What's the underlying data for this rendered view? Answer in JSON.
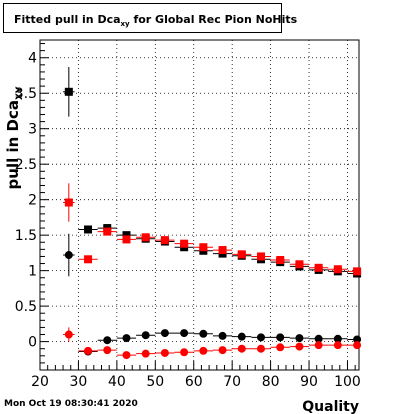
{
  "canvas": {
    "title": "Fitted pull in Dca",
    "title_sub": "xy",
    "title_suffix": " for Global Rec Pion NoHits",
    "footer_timestamp": "Mon Oct 19 08:30:41 2020"
  },
  "chart_data": {
    "type": "scatter",
    "title": "Fitted pull in Dca_xy for Global Rec Pion NoHits",
    "xlabel": "Quality",
    "ylabel": "pull in Dca",
    "ylabel_sub": "XY",
    "xlim": [
      20,
      103
    ],
    "ylim": [
      -0.4,
      4.25
    ],
    "x_ticks": [
      20,
      30,
      40,
      50,
      60,
      70,
      80,
      90,
      100
    ],
    "y_ticks": [
      0,
      0.5,
      1,
      1.5,
      2,
      2.5,
      3,
      3.5,
      4
    ],
    "grid": true,
    "colors": {
      "black": "#000000",
      "red": "#ff0000"
    },
    "series": [
      {
        "marker": "square",
        "color": "#000000",
        "points": [
          {
            "x": 27.5,
            "y": 3.52,
            "xerr": 1.5,
            "yerr": 0.35
          },
          {
            "x": 32.5,
            "y": 1.58,
            "xerr": 2.5,
            "yerr": 0.03
          },
          {
            "x": 37.5,
            "y": 1.6,
            "xerr": 2.5,
            "yerr": 0.02
          },
          {
            "x": 42.5,
            "y": 1.5,
            "xerr": 2.5,
            "yerr": 0.02
          },
          {
            "x": 47.5,
            "y": 1.45,
            "xerr": 2.5,
            "yerr": 0.02
          },
          {
            "x": 52.5,
            "y": 1.41,
            "xerr": 2.5,
            "yerr": 0.02
          },
          {
            "x": 57.5,
            "y": 1.33,
            "xerr": 2.5,
            "yerr": 0.02
          },
          {
            "x": 62.5,
            "y": 1.28,
            "xerr": 2.5,
            "yerr": 0.02
          },
          {
            "x": 67.5,
            "y": 1.24,
            "xerr": 2.5,
            "yerr": 0.02
          },
          {
            "x": 72.5,
            "y": 1.21,
            "xerr": 2.5,
            "yerr": 0.02
          },
          {
            "x": 77.5,
            "y": 1.16,
            "xerr": 2.5,
            "yerr": 0.02
          },
          {
            "x": 82.5,
            "y": 1.12,
            "xerr": 2.5,
            "yerr": 0.02
          },
          {
            "x": 87.5,
            "y": 1.06,
            "xerr": 2.5,
            "yerr": 0.02
          },
          {
            "x": 92.5,
            "y": 1.01,
            "xerr": 2.5,
            "yerr": 0.02
          },
          {
            "x": 97.5,
            "y": 0.99,
            "xerr": 2.5,
            "yerr": 0.02
          },
          {
            "x": 102.5,
            "y": 0.96,
            "xerr": 2.5,
            "yerr": 0.02
          }
        ]
      },
      {
        "marker": "square",
        "color": "#ff0000",
        "points": [
          {
            "x": 27.5,
            "y": 1.96,
            "xerr": 1.5,
            "yerr": 0.27
          },
          {
            "x": 32.5,
            "y": 1.16,
            "xerr": 2.5,
            "yerr": 0.04
          },
          {
            "x": 37.5,
            "y": 1.55,
            "xerr": 2.5,
            "yerr": 0.03
          },
          {
            "x": 42.5,
            "y": 1.44,
            "xerr": 2.5,
            "yerr": 0.02
          },
          {
            "x": 47.5,
            "y": 1.47,
            "xerr": 2.5,
            "yerr": 0.02
          },
          {
            "x": 52.5,
            "y": 1.43,
            "xerr": 2.5,
            "yerr": 0.02
          },
          {
            "x": 57.5,
            "y": 1.38,
            "xerr": 2.5,
            "yerr": 0.02
          },
          {
            "x": 62.5,
            "y": 1.33,
            "xerr": 2.5,
            "yerr": 0.02
          },
          {
            "x": 67.5,
            "y": 1.29,
            "xerr": 2.5,
            "yerr": 0.02
          },
          {
            "x": 72.5,
            "y": 1.23,
            "xerr": 2.5,
            "yerr": 0.02
          },
          {
            "x": 77.5,
            "y": 1.2,
            "xerr": 2.5,
            "yerr": 0.02
          },
          {
            "x": 82.5,
            "y": 1.15,
            "xerr": 2.5,
            "yerr": 0.02
          },
          {
            "x": 87.5,
            "y": 1.09,
            "xerr": 2.5,
            "yerr": 0.02
          },
          {
            "x": 92.5,
            "y": 1.04,
            "xerr": 2.5,
            "yerr": 0.02
          },
          {
            "x": 97.5,
            "y": 1.02,
            "xerr": 2.5,
            "yerr": 0.02
          },
          {
            "x": 102.5,
            "y": 0.99,
            "xerr": 2.5,
            "yerr": 0.02
          }
        ]
      },
      {
        "marker": "circle",
        "color": "#000000",
        "points": [
          {
            "x": 27.5,
            "y": 1.22,
            "xerr": 1.5,
            "yerr": 0.3
          },
          {
            "x": 32.5,
            "y": -0.14,
            "xerr": 2.5,
            "yerr": 0.03
          },
          {
            "x": 37.5,
            "y": 0.02,
            "xerr": 2.5,
            "yerr": 0.02
          },
          {
            "x": 42.5,
            "y": 0.05,
            "xerr": 2.5,
            "yerr": 0.02
          },
          {
            "x": 47.5,
            "y": 0.09,
            "xerr": 2.5,
            "yerr": 0.02
          },
          {
            "x": 52.5,
            "y": 0.12,
            "xerr": 2.5,
            "yerr": 0.02
          },
          {
            "x": 57.5,
            "y": 0.12,
            "xerr": 2.5,
            "yerr": 0.02
          },
          {
            "x": 62.5,
            "y": 0.11,
            "xerr": 2.5,
            "yerr": 0.02
          },
          {
            "x": 67.5,
            "y": 0.08,
            "xerr": 2.5,
            "yerr": 0.02
          },
          {
            "x": 72.5,
            "y": 0.07,
            "xerr": 2.5,
            "yerr": 0.02
          },
          {
            "x": 77.5,
            "y": 0.06,
            "xerr": 2.5,
            "yerr": 0.02
          },
          {
            "x": 82.5,
            "y": 0.06,
            "xerr": 2.5,
            "yerr": 0.02
          },
          {
            "x": 87.5,
            "y": 0.05,
            "xerr": 2.5,
            "yerr": 0.02
          },
          {
            "x": 92.5,
            "y": 0.04,
            "xerr": 2.5,
            "yerr": 0.02
          },
          {
            "x": 97.5,
            "y": 0.04,
            "xerr": 2.5,
            "yerr": 0.02
          },
          {
            "x": 102.5,
            "y": 0.03,
            "xerr": 2.5,
            "yerr": 0.02
          }
        ]
      },
      {
        "marker": "circle",
        "color": "#ff0000",
        "points": [
          {
            "x": 27.5,
            "y": 0.1,
            "xerr": 1.5,
            "yerr": 0.1
          },
          {
            "x": 32.5,
            "y": -0.13,
            "xerr": 2.5,
            "yerr": 0.03
          },
          {
            "x": 37.5,
            "y": -0.12,
            "xerr": 2.5,
            "yerr": 0.02
          },
          {
            "x": 42.5,
            "y": -0.19,
            "xerr": 2.5,
            "yerr": 0.02
          },
          {
            "x": 47.5,
            "y": -0.17,
            "xerr": 2.5,
            "yerr": 0.02
          },
          {
            "x": 52.5,
            "y": -0.16,
            "xerr": 2.5,
            "yerr": 0.02
          },
          {
            "x": 57.5,
            "y": -0.15,
            "xerr": 2.5,
            "yerr": 0.02
          },
          {
            "x": 62.5,
            "y": -0.13,
            "xerr": 2.5,
            "yerr": 0.02
          },
          {
            "x": 67.5,
            "y": -0.12,
            "xerr": 2.5,
            "yerr": 0.02
          },
          {
            "x": 72.5,
            "y": -0.1,
            "xerr": 2.5,
            "yerr": 0.02
          },
          {
            "x": 77.5,
            "y": -0.1,
            "xerr": 2.5,
            "yerr": 0.02
          },
          {
            "x": 82.5,
            "y": -0.08,
            "xerr": 2.5,
            "yerr": 0.02
          },
          {
            "x": 87.5,
            "y": -0.07,
            "xerr": 2.5,
            "yerr": 0.02
          },
          {
            "x": 92.5,
            "y": -0.05,
            "xerr": 2.5,
            "yerr": 0.02
          },
          {
            "x": 97.5,
            "y": -0.05,
            "xerr": 2.5,
            "yerr": 0.02
          },
          {
            "x": 102.5,
            "y": -0.05,
            "xerr": 2.5,
            "yerr": 0.02
          }
        ]
      }
    ]
  }
}
